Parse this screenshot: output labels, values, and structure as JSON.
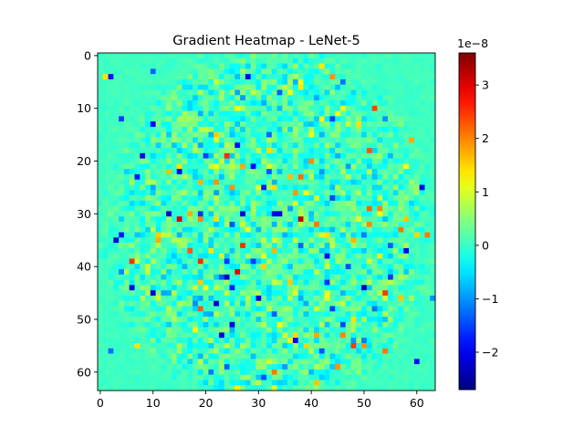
{
  "chart_data": {
    "type": "heatmap",
    "title": "Gradient Heatmap - LeNet-5",
    "xlabel": "",
    "ylabel": "",
    "rows": 64,
    "cols": 64,
    "x_ticks": [
      "0",
      "10",
      "20",
      "30",
      "40",
      "50",
      "60"
    ],
    "y_ticks": [
      "0",
      "10",
      "20",
      "30",
      "40",
      "50",
      "60"
    ],
    "colormap": "jet",
    "colorbar": {
      "min": -2.7,
      "max": 3.6,
      "ticks": [
        "−2",
        "−1",
        "0",
        "1",
        "2",
        "3"
      ],
      "tick_values": [
        -2,
        -1,
        0,
        1,
        2,
        3
      ],
      "offset_label": "1e−8"
    },
    "grid": false,
    "values_note": "",
    "values_seed": 7,
    "hotspots": [
      {
        "row": 10,
        "col": 52,
        "value": 2.4
      },
      {
        "row": 31,
        "col": 38,
        "value": 3.2
      },
      {
        "row": 41,
        "col": 26,
        "value": 2.9
      },
      {
        "row": 53,
        "col": 46,
        "value": 2.0
      },
      {
        "row": 31,
        "col": 15,
        "value": 3.0
      },
      {
        "row": 4,
        "col": 44,
        "value": 1.9
      },
      {
        "row": 44,
        "col": 50,
        "value": -2.4
      },
      {
        "row": 30,
        "col": 13,
        "value": -2.1
      },
      {
        "row": 13,
        "col": 10,
        "value": -1.9
      },
      {
        "row": 47,
        "col": 22,
        "value": -2.2
      }
    ]
  }
}
